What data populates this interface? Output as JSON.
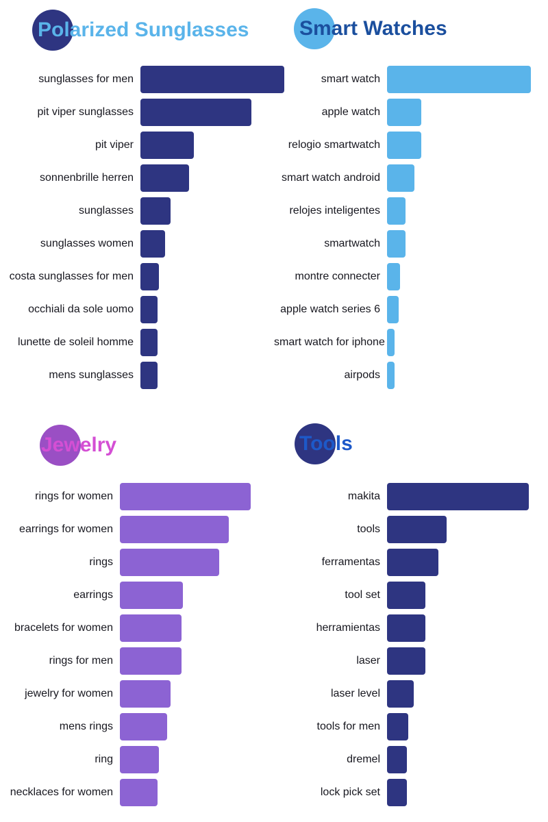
{
  "background_color": "#ffffff",
  "chart_data": [
    {
      "type": "bar",
      "orientation": "horizontal",
      "title": "Polarized Sunglasses",
      "title_color": "#5ab4ea",
      "circle_color": "#2e3581",
      "bar_color": "#2e3581",
      "value_scale": "relative, max = 100",
      "legend": "none",
      "grid": false,
      "categories": [
        "sunglasses for men",
        "pit viper sunglasses",
        "pit viper",
        "sonnenbrille herren",
        "sunglasses",
        "sunglasses women",
        "costa sunglasses for men",
        "occhiali da sole uomo",
        "lunette de soleil homme",
        "mens sunglasses"
      ],
      "values": [
        100,
        77,
        37,
        34,
        21,
        17,
        13,
        12,
        12,
        12
      ]
    },
    {
      "type": "bar",
      "orientation": "horizontal",
      "title": "Smart Watches",
      "title_color": "#1b4f9e",
      "circle_color": "#5ab4ea",
      "bar_color": "#5ab4ea",
      "value_scale": "relative, max = 100",
      "legend": "none",
      "grid": false,
      "categories": [
        "smart watch",
        "apple watch",
        "relogio smartwatch",
        "smart watch android",
        "relojes inteligentes",
        "smartwatch",
        "montre connecter",
        "apple watch series 6",
        "smart watch for iphone",
        "airpods"
      ],
      "values": [
        100,
        24,
        24,
        19,
        13,
        13,
        9,
        8,
        5,
        5
      ]
    },
    {
      "type": "bar",
      "orientation": "horizontal",
      "title": "Jewelry",
      "title_color": "#d44fd4",
      "circle_color": "#9a4fc4",
      "bar_color": "#8c63d3",
      "value_scale": "relative, max = 100",
      "legend": "none",
      "grid": false,
      "categories": [
        "rings for women",
        "earrings for women",
        "rings",
        "earrings",
        "bracelets for women",
        "rings for men",
        "jewelry for women",
        "mens rings",
        "ring",
        "necklaces for women"
      ],
      "values": [
        100,
        83,
        76,
        48,
        47,
        47,
        39,
        36,
        30,
        29
      ]
    },
    {
      "type": "bar",
      "orientation": "horizontal",
      "title": "Tools",
      "title_color": "#1d59c9",
      "circle_color": "#2e3581",
      "bar_color": "#2e3581",
      "value_scale": "relative, max = 100",
      "legend": "none",
      "grid": false,
      "categories": [
        "makita",
        "tools",
        "ferramentas",
        "tool set",
        "herramientas",
        "laser",
        "laser level",
        "tools for men",
        "dremel",
        "lock pick set"
      ],
      "values": [
        100,
        42,
        36,
        27,
        27,
        27,
        19,
        15,
        14,
        14
      ]
    }
  ]
}
